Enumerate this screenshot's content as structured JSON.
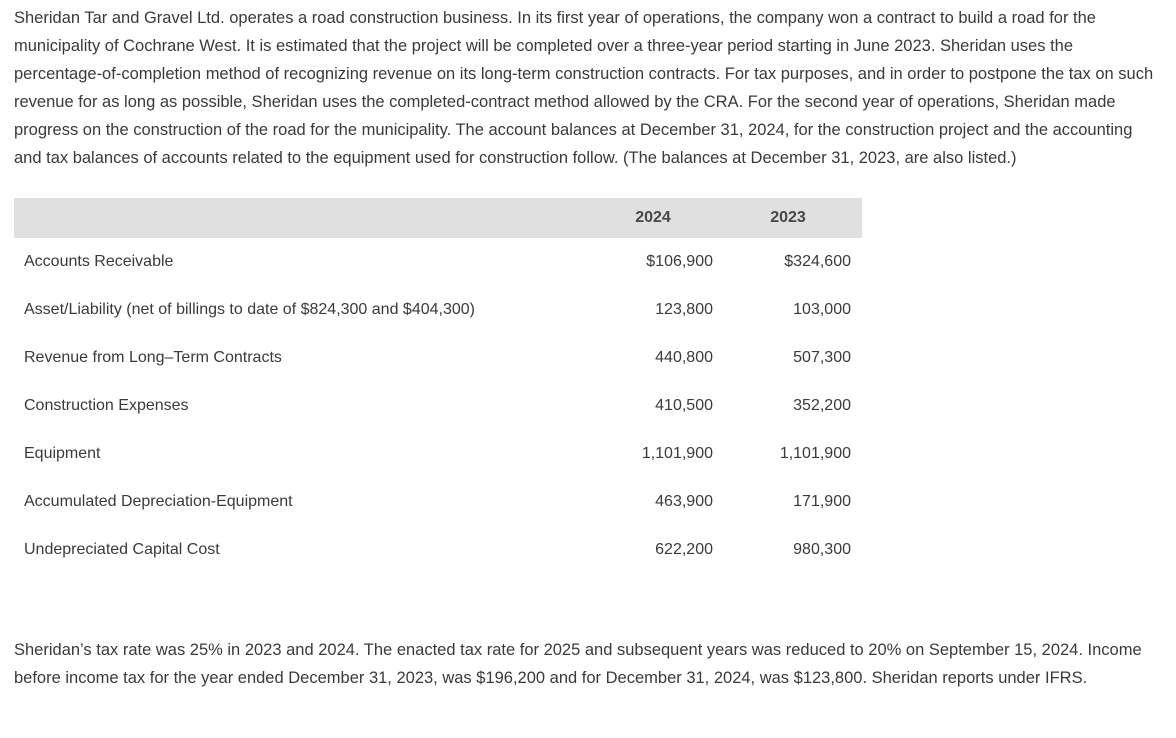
{
  "intro": "Sheridan Tar and Gravel Ltd. operates a road construction business. In its first year of operations, the company won a contract to build a road for the municipality of Cochrane West. It is estimated that the project will be completed over a three-year period starting in June 2023. Sheridan uses the percentage-of-completion method of recognizing revenue on its long-term construction contracts. For tax purposes, and in order to postpone the tax on such revenue for as long as possible, Sheridan uses the completed-contract method allowed by the CRA. For the second year of operations, Sheridan made progress on the construction of the road for the municipality. The account balances at December 31, 2024, for the construction project and the accounting and tax balances of accounts related to the equipment used for construction follow. (The balances at December 31, 2023, are also listed.)",
  "table": {
    "headers": {
      "label": "",
      "col_2024": "2024",
      "col_2023": "2023"
    },
    "rows": [
      {
        "label": "Accounts Receivable",
        "v2024": "$106,900",
        "v2023": "$324,600"
      },
      {
        "label": "Asset/Liability (net of billings to date of $824,300 and $404,300)",
        "v2024": "123,800",
        "v2023": "103,000"
      },
      {
        "label": "Revenue from Long–Term Contracts",
        "v2024": "440,800",
        "v2023": "507,300"
      },
      {
        "label": "Construction Expenses",
        "v2024": "410,500",
        "v2023": "352,200"
      },
      {
        "label": "Equipment",
        "v2024": "1,101,900",
        "v2023": "1,101,900"
      },
      {
        "label": "Accumulated Depreciation-Equipment",
        "v2024": "463,900",
        "v2023": "171,900"
      },
      {
        "label": "Undepreciated Capital Cost",
        "v2024": "622,200",
        "v2023": "980,300"
      }
    ]
  },
  "footer": "Sheridan’s tax rate was 25% in 2023 and 2024. The enacted tax rate for 2025 and subsequent years was reduced to 20% on September 15, 2024. Income before income tax for the year ended December 31, 2023, was $196,200 and for December 31, 2024, was $123,800. Sheridan reports under IFRS."
}
